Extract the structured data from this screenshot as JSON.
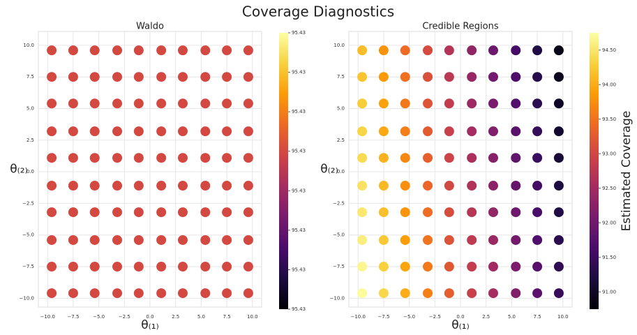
{
  "title": "Coverage Diagnostics",
  "chart_data": [
    {
      "type": "scatter",
      "title": "Waldo",
      "xlabel": "θ₍₁₎",
      "ylabel": "θ₍₂₎",
      "colormap": "inferno",
      "grid": true,
      "xlim": [
        -10.9,
        10.9
      ],
      "ylim": [
        -10.7,
        11.1
      ],
      "xticks": [
        {
          "value": -10,
          "label": "−10.0"
        },
        {
          "value": -7.5,
          "label": "−7.5"
        },
        {
          "value": -5,
          "label": "−5.0"
        },
        {
          "value": -2.5,
          "label": "−2.5"
        },
        {
          "value": 0,
          "label": "0.0"
        },
        2.5,
        {
          "value": 5,
          "label": "5.0"
        },
        7.5,
        {
          "value": 10,
          "label": "10.0"
        }
      ],
      "yticks": [
        {
          "value": -10,
          "label": "−10.0"
        },
        {
          "value": -7.5,
          "label": "−7.5"
        },
        {
          "value": -5,
          "label": "−5.0"
        },
        {
          "value": -2.5,
          "label": "−2.5"
        },
        {
          "value": 0,
          "label": "0.0"
        },
        2.5,
        {
          "value": 5,
          "label": "5.0"
        },
        7.5,
        {
          "value": 10,
          "label": "10.0"
        }
      ],
      "clim": [
        95.4299996,
        95.4300003
      ],
      "cticks": [
        {
          "value": 95.4299996,
          "label": "95.43"
        },
        {
          "value": 95.4299997,
          "label": "95.43"
        },
        {
          "value": 95.4299998,
          "label": "95.43"
        },
        {
          "value": 95.4299999,
          "label": "95.43"
        },
        95.43,
        {
          "value": 95.4300001,
          "label": "95.43"
        },
        {
          "value": 95.4300002,
          "label": "95.43"
        },
        {
          "value": 95.4300003,
          "label": "95.43"
        }
      ],
      "x": [
        -9.6,
        -7.5,
        -5.4,
        -3.2,
        -1.1,
        1.1,
        3.2,
        5.4,
        7.5,
        9.6,
        -9.6,
        -7.5,
        -5.4,
        -3.2,
        -1.1,
        1.1,
        3.2,
        5.4,
        7.5,
        9.6,
        -9.6,
        -7.5,
        -5.4,
        -3.2,
        -1.1,
        1.1,
        3.2,
        5.4,
        7.5,
        9.6,
        -9.6,
        -7.5,
        -5.4,
        -3.2,
        -1.1,
        1.1,
        3.2,
        5.4,
        7.5,
        9.6,
        -9.6,
        -7.5,
        -5.4,
        -3.2,
        -1.1,
        1.1,
        3.2,
        5.4,
        7.5,
        9.6,
        -9.6,
        -7.5,
        -5.4,
        -3.2,
        -1.1,
        1.1,
        3.2,
        5.4,
        7.5,
        9.6,
        -9.6,
        -7.5,
        -5.4,
        -3.2,
        -1.1,
        1.1,
        3.2,
        5.4,
        7.5,
        9.6,
        -9.6,
        -7.5,
        -5.4,
        -3.2,
        -1.1,
        1.1,
        3.2,
        5.4,
        7.5,
        9.6,
        -9.6,
        -7.5,
        -5.4,
        -3.2,
        -1.1,
        1.1,
        3.2,
        5.4,
        7.5,
        9.6,
        -9.6,
        -7.5,
        -5.4,
        -3.2,
        -1.1,
        1.1,
        3.2,
        5.4,
        7.5,
        9.6
      ],
      "y": [
        -9.6,
        -9.6,
        -9.6,
        -9.6,
        -9.6,
        -9.6,
        -9.6,
        -9.6,
        -9.6,
        -9.6,
        -7.5,
        -7.5,
        -7.5,
        -7.5,
        -7.5,
        -7.5,
        -7.5,
        -7.5,
        -7.5,
        -7.5,
        -5.4,
        -5.4,
        -5.4,
        -5.4,
        -5.4,
        -5.4,
        -5.4,
        -5.4,
        -5.4,
        -5.4,
        -3.2,
        -3.2,
        -3.2,
        -3.2,
        -3.2,
        -3.2,
        -3.2,
        -3.2,
        -3.2,
        -3.2,
        -1.1,
        -1.1,
        -1.1,
        -1.1,
        -1.1,
        -1.1,
        -1.1,
        -1.1,
        -1.1,
        -1.1,
        1.1,
        1.1,
        1.1,
        1.1,
        1.1,
        1.1,
        1.1,
        1.1,
        1.1,
        1.1,
        3.2,
        3.2,
        3.2,
        3.2,
        3.2,
        3.2,
        3.2,
        3.2,
        3.2,
        3.2,
        5.4,
        5.4,
        5.4,
        5.4,
        5.4,
        5.4,
        5.4,
        5.4,
        5.4,
        5.4,
        7.5,
        7.5,
        7.5,
        7.5,
        7.5,
        7.5,
        7.5,
        7.5,
        7.5,
        7.5,
        9.6,
        9.6,
        9.6,
        9.6,
        9.6,
        9.6,
        9.6,
        9.6,
        9.6,
        9.6
      ],
      "values": [
        95.43,
        95.43,
        95.43,
        95.43,
        95.43,
        95.43,
        95.43,
        95.43,
        95.43,
        95.43,
        95.43,
        95.43,
        95.43,
        95.43,
        95.43,
        95.43,
        95.43,
        95.43,
        95.43,
        95.43,
        95.43,
        95.43,
        95.43,
        95.43,
        95.43,
        95.43,
        95.43,
        95.43,
        95.43,
        95.43,
        95.43,
        95.43,
        95.43,
        95.43,
        95.43,
        95.43,
        95.43,
        95.43,
        95.43,
        95.43,
        95.43,
        95.43,
        95.43,
        95.43,
        95.43,
        95.43,
        95.43,
        95.43,
        95.43,
        95.43,
        95.43,
        95.43,
        95.43,
        95.43,
        95.43,
        95.43,
        95.43,
        95.43,
        95.43,
        95.43,
        95.43,
        95.43,
        95.43,
        95.43,
        95.43,
        95.43,
        95.43,
        95.43,
        95.43,
        95.43,
        95.43,
        95.43,
        95.43,
        95.43,
        95.43,
        95.43,
        95.43,
        95.43,
        95.43,
        95.43,
        95.43,
        95.43,
        95.43,
        95.43,
        95.43,
        95.43,
        95.43,
        95.43,
        95.43,
        95.43,
        95.43,
        95.43,
        95.43,
        95.43,
        95.43,
        95.43,
        95.43,
        95.43,
        95.43,
        95.43
      ]
    },
    {
      "type": "scatter",
      "title": "Credible Regions",
      "xlabel": "θ₍₁₎",
      "ylabel": "θ₍₂₎",
      "colormap": "inferno",
      "grid": true,
      "colorbar_label": "Estimated Coverage",
      "xlim": [
        -10.9,
        10.9
      ],
      "ylim": [
        -10.7,
        11.1
      ],
      "xticks": [
        {
          "value": -10,
          "label": "−10.0"
        },
        {
          "value": -7.5,
          "label": "−7.5"
        },
        {
          "value": -5,
          "label": "−5.0"
        },
        {
          "value": -2.5,
          "label": "−2.5"
        },
        {
          "value": 0,
          "label": "0.0"
        },
        2.5,
        {
          "value": 5,
          "label": "5.0"
        },
        7.5,
        {
          "value": 10,
          "label": "10.0"
        }
      ],
      "yticks": [
        {
          "value": -10,
          "label": "−10.0"
        },
        {
          "value": -7.5,
          "label": "−7.5"
        },
        {
          "value": -5,
          "label": "−5.0"
        },
        {
          "value": -2.5,
          "label": "−2.5"
        },
        {
          "value": 0,
          "label": "0.0"
        },
        2.5,
        {
          "value": 5,
          "label": "5.0"
        },
        7.5,
        {
          "value": 10,
          "label": "10.0"
        }
      ],
      "clim": [
        90.75,
        94.75
      ],
      "cticks": [
        {
          "value": 91,
          "label": "91.00"
        },
        {
          "value": 91.5,
          "label": "91.50"
        },
        {
          "value": 92,
          "label": "92.00"
        },
        {
          "value": 92.5,
          "label": "92.50"
        },
        {
          "value": 93,
          "label": "93.00"
        },
        {
          "value": 93.5,
          "label": "93.50"
        },
        {
          "value": 94,
          "label": "94.00"
        },
        {
          "value": 94.5,
          "label": "94.50"
        }
      ],
      "x": [
        -9.6,
        -7.5,
        -5.4,
        -3.2,
        -1.1,
        1.1,
        3.2,
        5.4,
        7.5,
        9.6,
        -9.6,
        -7.5,
        -5.4,
        -3.2,
        -1.1,
        1.1,
        3.2,
        5.4,
        7.5,
        9.6,
        -9.6,
        -7.5,
        -5.4,
        -3.2,
        -1.1,
        1.1,
        3.2,
        5.4,
        7.5,
        9.6,
        -9.6,
        -7.5,
        -5.4,
        -3.2,
        -1.1,
        1.1,
        3.2,
        5.4,
        7.5,
        9.6,
        -9.6,
        -7.5,
        -5.4,
        -3.2,
        -1.1,
        1.1,
        3.2,
        5.4,
        7.5,
        9.6,
        -9.6,
        -7.5,
        -5.4,
        -3.2,
        -1.1,
        1.1,
        3.2,
        5.4,
        7.5,
        9.6,
        -9.6,
        -7.5,
        -5.4,
        -3.2,
        -1.1,
        1.1,
        3.2,
        5.4,
        7.5,
        9.6,
        -9.6,
        -7.5,
        -5.4,
        -3.2,
        -1.1,
        1.1,
        3.2,
        5.4,
        7.5,
        9.6,
        -9.6,
        -7.5,
        -5.4,
        -3.2,
        -1.1,
        1.1,
        3.2,
        5.4,
        7.5,
        9.6,
        -9.6,
        -7.5,
        -5.4,
        -3.2,
        -1.1,
        1.1,
        3.2,
        5.4,
        7.5,
        9.6
      ],
      "y": [
        -9.6,
        -9.6,
        -9.6,
        -9.6,
        -9.6,
        -9.6,
        -9.6,
        -9.6,
        -9.6,
        -9.6,
        -7.5,
        -7.5,
        -7.5,
        -7.5,
        -7.5,
        -7.5,
        -7.5,
        -7.5,
        -7.5,
        -7.5,
        -5.4,
        -5.4,
        -5.4,
        -5.4,
        -5.4,
        -5.4,
        -5.4,
        -5.4,
        -5.4,
        -5.4,
        -3.2,
        -3.2,
        -3.2,
        -3.2,
        -3.2,
        -3.2,
        -3.2,
        -3.2,
        -3.2,
        -3.2,
        -1.1,
        -1.1,
        -1.1,
        -1.1,
        -1.1,
        -1.1,
        -1.1,
        -1.1,
        -1.1,
        -1.1,
        1.1,
        1.1,
        1.1,
        1.1,
        1.1,
        1.1,
        1.1,
        1.1,
        1.1,
        1.1,
        3.2,
        3.2,
        3.2,
        3.2,
        3.2,
        3.2,
        3.2,
        3.2,
        3.2,
        3.2,
        5.4,
        5.4,
        5.4,
        5.4,
        5.4,
        5.4,
        5.4,
        5.4,
        5.4,
        5.4,
        7.5,
        7.5,
        7.5,
        7.5,
        7.5,
        7.5,
        7.5,
        7.5,
        7.5,
        7.5,
        9.6,
        9.6,
        9.6,
        9.6,
        9.6,
        9.6,
        9.6,
        9.6,
        9.6,
        9.6
      ],
      "values": [
        94.72,
        94.36,
        94.01,
        93.63,
        93.28,
        92.9,
        92.54,
        92.17,
        91.81,
        91.46,
        94.66,
        94.3,
        93.94,
        93.57,
        93.21,
        92.84,
        92.48,
        92.11,
        91.75,
        91.39,
        94.59,
        94.24,
        93.88,
        93.51,
        93.15,
        92.78,
        92.42,
        92.04,
        91.69,
        91.33,
        94.53,
        94.17,
        93.81,
        93.44,
        93.08,
        92.71,
        92.35,
        91.98,
        91.62,
        91.26,
        94.47,
        94.11,
        93.75,
        93.38,
        93.02,
        92.65,
        92.29,
        91.92,
        91.56,
        91.2,
        94.4,
        94.04,
        93.69,
        93.31,
        92.95,
        92.58,
        92.22,
        91.85,
        91.49,
        91.14,
        94.34,
        93.98,
        93.62,
        93.25,
        92.89,
        92.52,
        92.16,
        91.79,
        91.43,
        91.07,
        94.27,
        93.91,
        93.56,
        93.18,
        92.83,
        92.45,
        92.09,
        91.72,
        91.36,
        91.01,
        94.21,
        93.85,
        93.49,
        93.12,
        92.76,
        92.39,
        92.03,
        91.66,
        91.3,
        90.94,
        94.14,
        93.79,
        93.43,
        93.06,
        92.7,
        92.32,
        91.97,
        91.59,
        91.24,
        90.88
      ]
    }
  ]
}
